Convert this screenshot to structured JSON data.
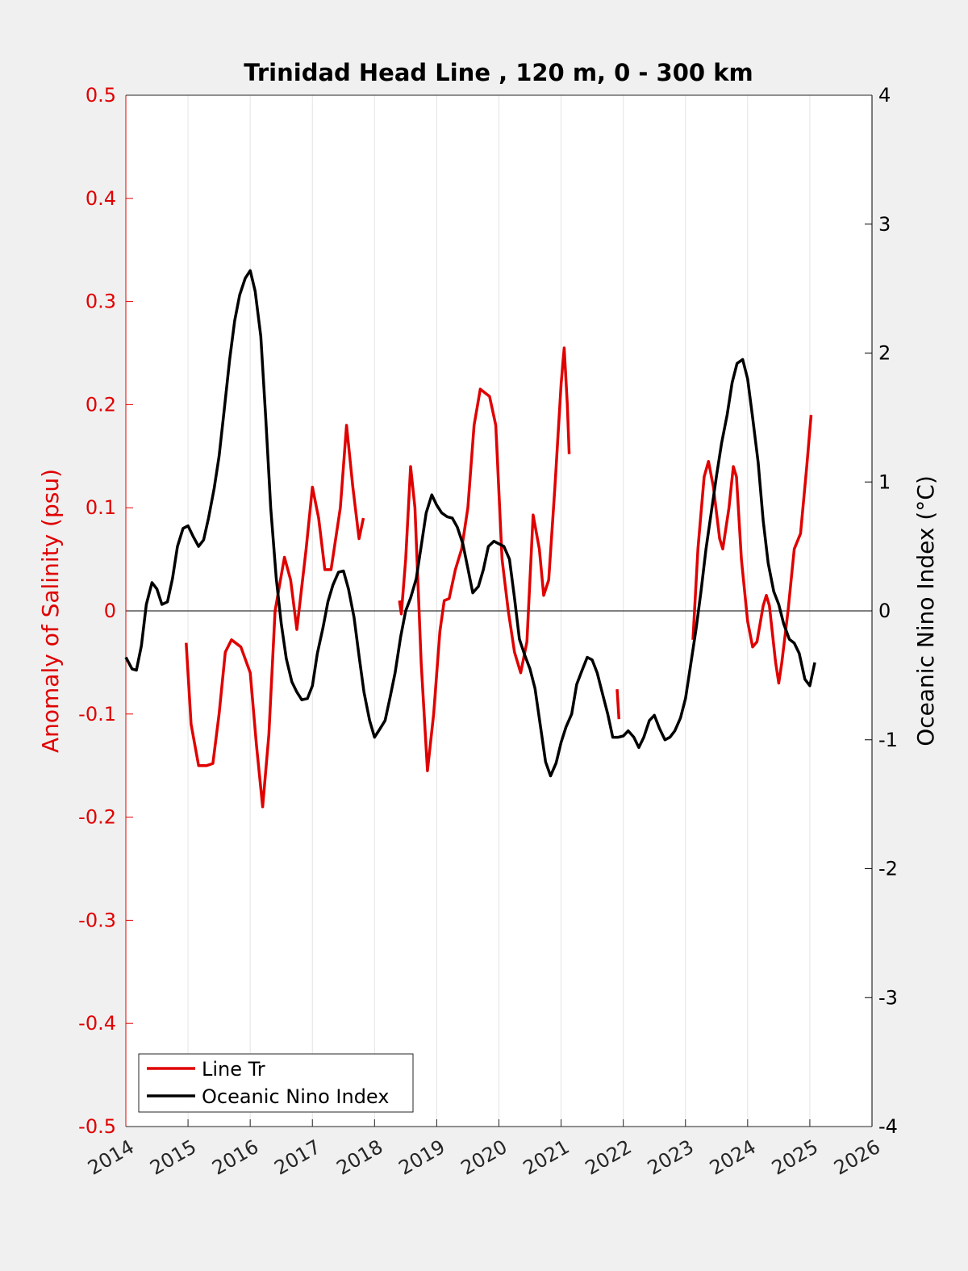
{
  "chart_data": {
    "type": "line",
    "title": "Trinidad Head Line , 120 m, 0 - 300 km",
    "y_label": "Anomaly of Salinity (psu)",
    "y2_label": "Oceanic Nino Index (°C)",
    "xlim": [
      2014,
      2026
    ],
    "xticks": [
      2014,
      2015,
      2016,
      2017,
      2018,
      2019,
      2020,
      2021,
      2022,
      2023,
      2024,
      2025,
      2026
    ],
    "ylim": [
      -0.5,
      0.5
    ],
    "yticks": [
      -0.5,
      -0.4,
      -0.3,
      -0.2,
      -0.1,
      0,
      0.1,
      0.2,
      0.3,
      0.4,
      0.5
    ],
    "y2lim": [
      -4,
      4
    ],
    "y2ticks": [
      -4,
      -3,
      -2,
      -1,
      0,
      1,
      2,
      3,
      4
    ],
    "y_color": "#e00000",
    "y2_color": "#000000",
    "grid": "x",
    "zero_line": true,
    "legend": "lower left",
    "series": [
      {
        "name": "Line Tr",
        "color": "#e00000",
        "x": [
          2014.97,
          2015.05,
          2015.17,
          2015.3,
          2015.4,
          2015.5,
          2015.6,
          2015.7,
          2015.85,
          2016.0,
          2016.1,
          2016.2,
          2016.3,
          2016.4,
          2016.55,
          2016.65,
          2016.75,
          2016.9,
          2017.0,
          2017.1,
          2017.2,
          2017.3,
          2017.45,
          2017.55,
          2017.65,
          2017.75,
          2017.82,
          null,
          2018.4,
          2018.43,
          2018.5,
          2018.58,
          2018.65,
          2018.75,
          2018.85,
          2018.95,
          2019.05,
          2019.12,
          2019.2,
          2019.3,
          2019.4,
          2019.5,
          2019.6,
          2019.7,
          2019.85,
          2019.95,
          2020.05,
          2020.15,
          2020.25,
          2020.35,
          2020.45,
          2020.55,
          2020.65,
          2020.72,
          2020.8,
          2020.9,
          2021.0,
          2021.05,
          2021.1,
          2021.13,
          null,
          2021.9,
          2021.93,
          null,
          2023.12,
          2023.2,
          2023.3,
          2023.37,
          2023.45,
          2023.55,
          2023.6,
          2023.7,
          2023.77,
          2023.82,
          2023.9,
          2024.0,
          2024.08,
          2024.15,
          2024.25,
          2024.3,
          2024.35,
          2024.45,
          2024.5,
          2024.55,
          2024.65,
          2024.75,
          2024.85,
          2024.95,
          2025.02
        ],
        "values": [
          -0.031,
          -0.11,
          -0.15,
          -0.15,
          -0.148,
          -0.1,
          -0.04,
          -0.028,
          -0.035,
          -0.06,
          -0.13,
          -0.19,
          -0.12,
          0.0,
          0.052,
          0.03,
          -0.018,
          0.06,
          0.12,
          0.09,
          0.04,
          0.04,
          0.1,
          0.18,
          0.12,
          0.07,
          0.09,
          null,
          0.01,
          -0.003,
          0.05,
          0.14,
          0.1,
          -0.05,
          -0.155,
          -0.1,
          -0.02,
          0.01,
          0.012,
          0.04,
          0.06,
          0.1,
          0.18,
          0.215,
          0.208,
          0.18,
          0.05,
          0.0,
          -0.04,
          -0.06,
          -0.03,
          0.093,
          0.06,
          0.015,
          0.03,
          0.12,
          0.22,
          0.255,
          0.2,
          0.152,
          null,
          -0.076,
          -0.105,
          null,
          -0.028,
          0.06,
          0.13,
          0.145,
          0.12,
          0.07,
          0.06,
          0.1,
          0.14,
          0.13,
          0.05,
          -0.01,
          -0.035,
          -0.03,
          0.005,
          0.015,
          0.005,
          -0.05,
          -0.07,
          -0.05,
          0.0,
          0.06,
          0.075,
          0.14,
          0.19
        ]
      },
      {
        "name": "Oceanic Nino Index",
        "color": "#000000",
        "axis": "y2",
        "x": [
          2014.0,
          2014.1,
          2014.17,
          2014.25,
          2014.33,
          2014.42,
          2014.5,
          2014.58,
          2014.67,
          2014.75,
          2014.83,
          2014.92,
          2015.0,
          2015.08,
          2015.17,
          2015.25,
          2015.33,
          2015.42,
          2015.5,
          2015.58,
          2015.67,
          2015.75,
          2015.83,
          2015.92,
          2016.0,
          2016.08,
          2016.17,
          2016.25,
          2016.33,
          2016.42,
          2016.5,
          2016.58,
          2016.67,
          2016.75,
          2016.83,
          2016.92,
          2017.0,
          2017.08,
          2017.17,
          2017.25,
          2017.33,
          2017.42,
          2017.5,
          2017.58,
          2017.67,
          2017.75,
          2017.83,
          2017.92,
          2018.0,
          2018.08,
          2018.17,
          2018.25,
          2018.33,
          2018.42,
          2018.5,
          2018.58,
          2018.67,
          2018.75,
          2018.83,
          2018.92,
          2019.0,
          2019.08,
          2019.17,
          2019.25,
          2019.33,
          2019.42,
          2019.5,
          2019.58,
          2019.67,
          2019.75,
          2019.83,
          2019.92,
          2020.0,
          2020.08,
          2020.17,
          2020.25,
          2020.33,
          2020.42,
          2020.5,
          2020.58,
          2020.67,
          2020.75,
          2020.83,
          2020.92,
          2021.0,
          2021.08,
          2021.17,
          2021.25,
          2021.33,
          2021.42,
          2021.5,
          2021.58,
          2021.67,
          2021.75,
          2021.83,
          2021.92,
          2022.0,
          2022.08,
          2022.17,
          2022.25,
          2022.33,
          2022.42,
          2022.5,
          2022.58,
          2022.67,
          2022.75,
          2022.83,
          2022.92,
          2023.0,
          2023.08,
          2023.17,
          2023.25,
          2023.33,
          2023.42,
          2023.5,
          2023.58,
          2023.67,
          2023.75,
          2023.83,
          2023.92,
          2024.0,
          2024.08,
          2024.17,
          2024.25,
          2024.33,
          2024.42,
          2024.5,
          2024.58,
          2024.67,
          2024.75,
          2024.83,
          2024.92,
          2025.0,
          2025.08
        ],
        "values": [
          -0.36,
          -0.45,
          -0.46,
          -0.27,
          0.05,
          0.22,
          0.17,
          0.05,
          0.07,
          0.25,
          0.5,
          0.64,
          0.66,
          0.58,
          0.5,
          0.55,
          0.72,
          0.95,
          1.2,
          1.55,
          1.95,
          2.25,
          2.45,
          2.58,
          2.64,
          2.48,
          2.13,
          1.5,
          0.8,
          0.25,
          -0.1,
          -0.37,
          -0.55,
          -0.63,
          -0.69,
          -0.68,
          -0.58,
          -0.33,
          -0.13,
          0.07,
          0.2,
          0.3,
          0.31,
          0.17,
          -0.05,
          -0.35,
          -0.63,
          -0.85,
          -0.98,
          -0.92,
          -0.85,
          -0.67,
          -0.48,
          -0.2,
          0.0,
          0.1,
          0.25,
          0.5,
          0.76,
          0.9,
          0.82,
          0.76,
          0.73,
          0.72,
          0.65,
          0.52,
          0.33,
          0.14,
          0.19,
          0.32,
          0.5,
          0.54,
          0.52,
          0.5,
          0.4,
          0.1,
          -0.22,
          -0.35,
          -0.45,
          -0.6,
          -0.9,
          -1.17,
          -1.28,
          -1.18,
          -1.02,
          -0.9,
          -0.8,
          -0.57,
          -0.47,
          -0.36,
          -0.38,
          -0.48,
          -0.65,
          -0.8,
          -0.98,
          -0.98,
          -0.97,
          -0.93,
          -0.98,
          -1.06,
          -0.98,
          -0.85,
          -0.81,
          -0.91,
          -1.0,
          -0.98,
          -0.93,
          -0.83,
          -0.68,
          -0.43,
          -0.14,
          0.15,
          0.48,
          0.78,
          1.05,
          1.3,
          1.52,
          1.77,
          1.92,
          1.95,
          1.8,
          1.5,
          1.15,
          0.7,
          0.37,
          0.15,
          0.05,
          -0.1,
          -0.22,
          -0.25,
          -0.33,
          -0.53,
          -0.58,
          -0.4
        ]
      }
    ]
  }
}
